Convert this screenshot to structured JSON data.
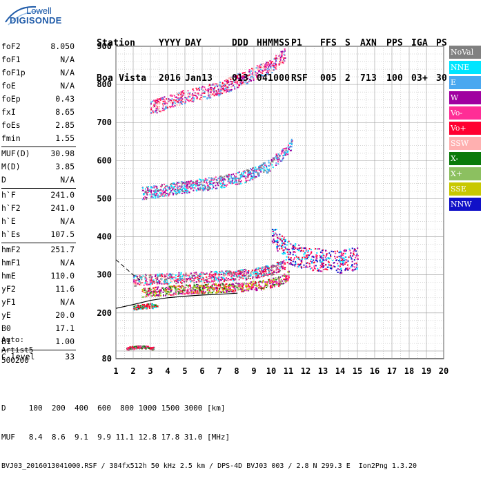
{
  "logo": {
    "line1": "Lowell",
    "line2": "DIGISONDE"
  },
  "header": {
    "labels": [
      "Station",
      "YYYY",
      "DAY",
      "DDD",
      "HHMMSS",
      "P1",
      "FFS",
      "S",
      "AXN",
      "PPS",
      "IGA",
      "PS"
    ],
    "values": [
      "Boa Vista",
      "2016",
      "Jan13",
      "013",
      "041000",
      "RSF",
      "005",
      "2",
      "713",
      "100",
      "03+",
      "30"
    ]
  },
  "params": [
    {
      "k": "foF2",
      "v": "8.050"
    },
    {
      "k": "foF1",
      "v": "N/A"
    },
    {
      "k": "foF1p",
      "v": "N/A"
    },
    {
      "k": "foE",
      "v": "N/A"
    },
    {
      "k": "foEp",
      "v": "0.43"
    },
    {
      "k": "fxI",
      "v": "8.65"
    },
    {
      "k": "foEs",
      "v": "2.85"
    },
    {
      "k": "fmin",
      "v": "1.55"
    },
    {
      "sep": true
    },
    {
      "k": "MUF(D)",
      "v": "30.98"
    },
    {
      "k": "M(D)",
      "v": "3.85"
    },
    {
      "k": "D",
      "v": "N/A"
    },
    {
      "sep": true
    },
    {
      "k": "h`F",
      "v": "241.0"
    },
    {
      "k": "h`F2",
      "v": "241.0"
    },
    {
      "k": "h`E",
      "v": "N/A"
    },
    {
      "k": "h`Es",
      "v": "107.5"
    },
    {
      "sep": true
    },
    {
      "k": "hmF2",
      "v": "251.7"
    },
    {
      "k": "hmF1",
      "v": "N/A"
    },
    {
      "k": "hmE",
      "v": "110.0"
    },
    {
      "k": "yF2",
      "v": "11.6"
    },
    {
      "k": "yF1",
      "v": "N/A"
    },
    {
      "k": "yE",
      "v": "20.0"
    },
    {
      "k": "B0",
      "v": "17.1"
    },
    {
      "k": "B1",
      "v": "1.00"
    },
    {
      "sep": true
    },
    {
      "k": "C-level",
      "v": "33"
    }
  ],
  "auto": [
    "Auto:",
    "Artist5",
    "500200"
  ],
  "legend": [
    {
      "label": "NoVal",
      "bg": "#808080",
      "fg": "#ffffff"
    },
    {
      "label": "NNE",
      "bg": "#00e5ff",
      "fg": "#ffffff"
    },
    {
      "label": "E",
      "bg": "#4aa8f0",
      "fg": "#ffffff"
    },
    {
      "label": "W",
      "bg": "#a000a0",
      "fg": "#ffffff"
    },
    {
      "label": "Vo-",
      "bg": "#ff2d96",
      "fg": "#ffffff"
    },
    {
      "label": "Vo+",
      "bg": "#ff0030",
      "fg": "#ffffff"
    },
    {
      "label": "SSW",
      "bg": "#ffb0b0",
      "fg": "#ffffff"
    },
    {
      "label": "X-",
      "bg": "#0a7a0a",
      "fg": "#ffffff"
    },
    {
      "label": "X+",
      "bg": "#8cc060",
      "fg": "#ffffff"
    },
    {
      "label": "SSE",
      "bg": "#c8c800",
      "fg": "#ffffff"
    },
    {
      "label": "NNW",
      "bg": "#1010c8",
      "fg": "#ffffff"
    }
  ],
  "footer": {
    "d_row": "D     100  200  400  600  800 1000 1500 3000 [km]",
    "muf_row": "MUF   8.4  8.6  9.1  9.9 11.1 12.8 17.8 31.0 [MHz]",
    "file_row": "BVJ03_2016013041000.RSF / 384fx512h 50 kHz 2.5 km / DPS-4D BVJ03 003 / 2.8 N 299.3 E  Ion2Png 1.3.20"
  },
  "chart_data": {
    "type": "scatter",
    "xlim": [
      1,
      20
    ],
    "ylim": [
      80,
      900
    ],
    "xticks": [
      1,
      2,
      3,
      4,
      5,
      6,
      7,
      8,
      9,
      10,
      11,
      12,
      13,
      14,
      15,
      16,
      17,
      18,
      19,
      20
    ],
    "yticks": [
      80,
      200,
      300,
      400,
      500,
      600,
      700,
      800,
      900
    ],
    "grid": true,
    "traces": [
      {
        "name": "O-trace F2",
        "x": [
          2.0,
          3.0,
          4.0,
          5.0,
          6.0,
          7.0,
          8.0,
          9.0,
          10.0,
          10.8
        ],
        "y": [
          285,
          290,
          292,
          294,
          295,
          298,
          300,
          305,
          315,
          330
        ]
      },
      {
        "name": "X-trace F2",
        "x": [
          2.5,
          3.5,
          4.5,
          5.5,
          6.5,
          7.5,
          8.5,
          9.5,
          10.5,
          11.0
        ],
        "y": [
          255,
          258,
          262,
          264,
          266,
          268,
          270,
          275,
          285,
          300
        ]
      },
      {
        "name": "2nd hop F",
        "x": [
          2.5,
          4.0,
          5.5,
          7.0,
          8.5,
          10.0,
          11.2
        ],
        "y": [
          515,
          525,
          535,
          545,
          560,
          590,
          645
        ]
      },
      {
        "name": "3rd hop F",
        "x": [
          3.0,
          4.0,
          5.0,
          6.0,
          7.0,
          8.0,
          9.0,
          10.0,
          10.8
        ],
        "y": [
          740,
          755,
          770,
          780,
          790,
          810,
          830,
          850,
          880
        ]
      },
      {
        "name": "spread F high",
        "x": [
          10.0,
          10.5,
          11.0,
          12.0,
          13.0,
          14.0,
          15.0
        ],
        "y": [
          420,
          380,
          360,
          345,
          340,
          335,
          345
        ]
      },
      {
        "name": "Es",
        "x": [
          1.6,
          2.0,
          2.5,
          2.85,
          3.2
        ],
        "y": [
          108,
          110,
          112,
          110,
          108
        ]
      },
      {
        "name": "Es 2nd",
        "x": [
          2.0,
          2.5,
          3.0,
          3.4
        ],
        "y": [
          215,
          218,
          220,
          218
        ]
      }
    ],
    "profile": {
      "x": [
        1.0,
        2.0,
        3.0,
        4.0,
        5.0,
        6.0,
        7.0,
        8.05
      ],
      "y": [
        212,
        222,
        233,
        240,
        244,
        247,
        249,
        252
      ]
    },
    "profile_dashed": {
      "x": [
        1.0,
        1.5,
        2.0,
        2.4
      ],
      "y": [
        340,
        320,
        300,
        287
      ]
    }
  }
}
